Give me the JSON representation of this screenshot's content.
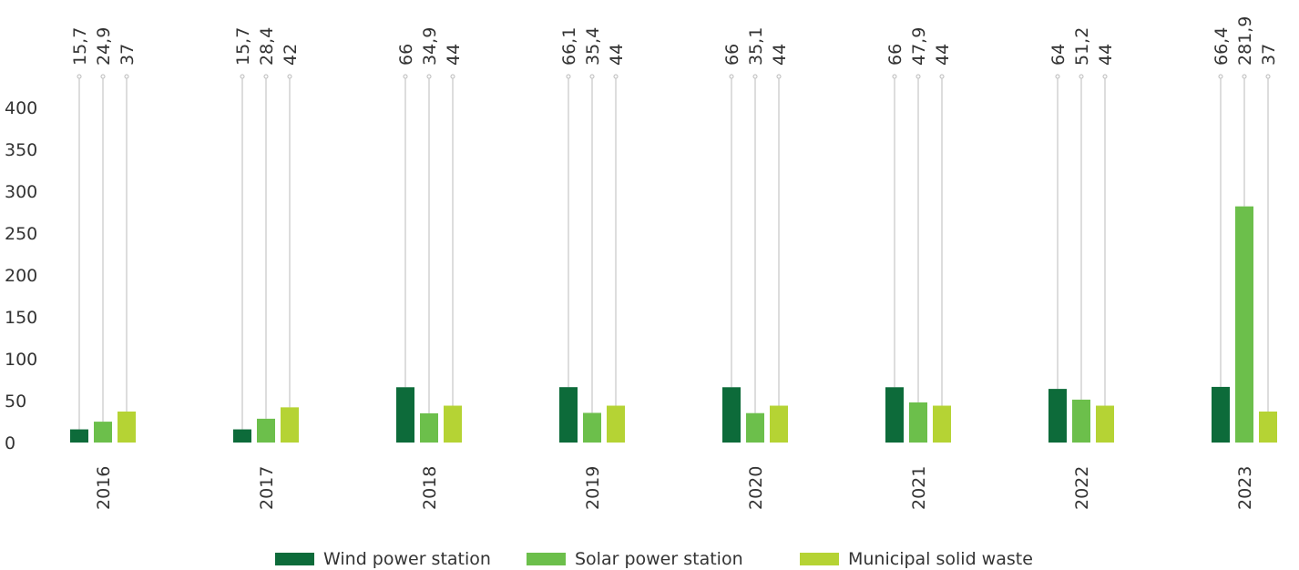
{
  "chart_data": {
    "type": "bar",
    "categories": [
      "2016",
      "2017",
      "2018",
      "2019",
      "2020",
      "2021",
      "2022",
      "2023"
    ],
    "series": [
      {
        "name": "Wind power station",
        "color": "#0d6b3a",
        "values": [
          15.7,
          15.7,
          66,
          66.1,
          66,
          66,
          64,
          66.4
        ],
        "value_labels": [
          "15,7",
          "15,7",
          "66",
          "66,1",
          "66",
          "66",
          "64",
          "66,4"
        ]
      },
      {
        "name": "Solar power station",
        "color": "#6cbf4b",
        "values": [
          24.9,
          28.4,
          34.9,
          35.4,
          35.1,
          47.9,
          51.2,
          281.9
        ],
        "value_labels": [
          "24,9",
          "28,4",
          "34,9",
          "35,4",
          "35,1",
          "47,9",
          "51,2",
          "281,9"
        ]
      },
      {
        "name": "Municipal solid waste",
        "color": "#b5d334",
        "values": [
          37,
          42,
          44,
          44,
          44,
          44,
          44,
          37
        ],
        "value_labels": [
          "37",
          "42",
          "44",
          "44",
          "44",
          "44",
          "44",
          "37"
        ]
      }
    ],
    "ylim": [
      0,
      400
    ],
    "yticks": [
      0,
      50,
      100,
      150,
      200,
      250,
      300,
      350,
      400
    ],
    "grid": false,
    "legend": "bottom"
  }
}
